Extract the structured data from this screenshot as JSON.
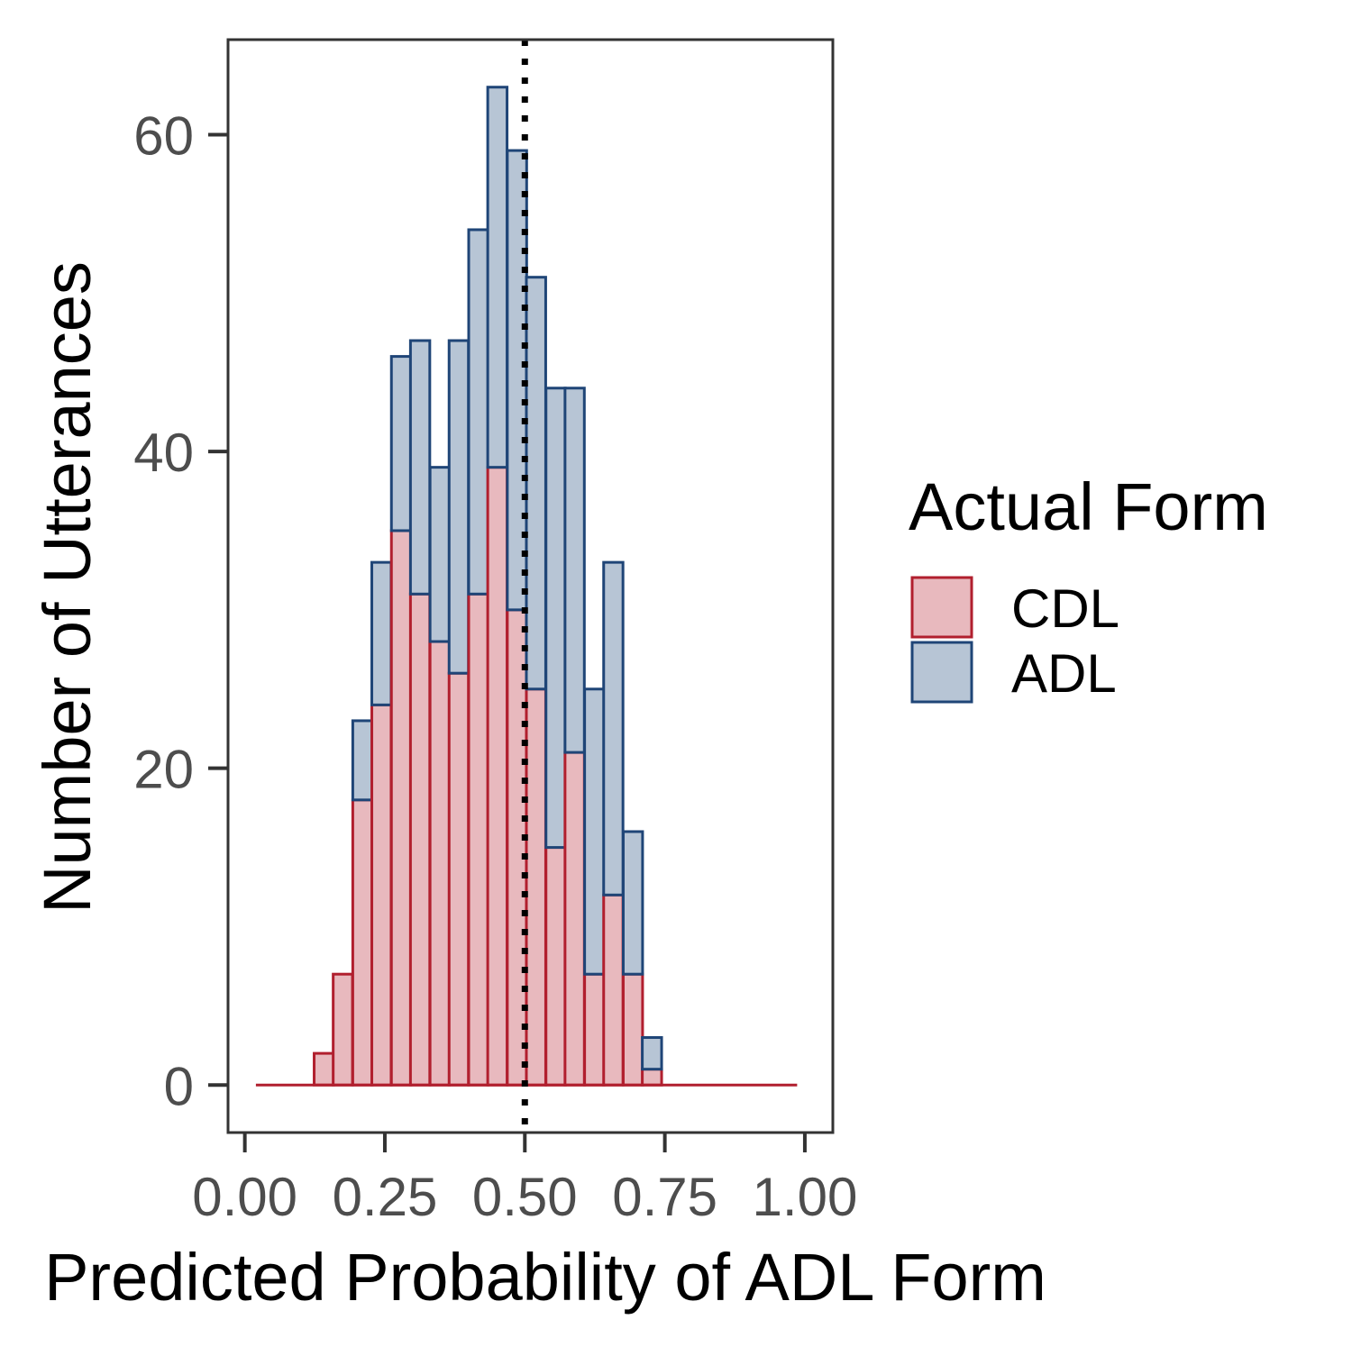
{
  "chart_data": {
    "type": "bar",
    "subtype": "stacked histogram",
    "xlabel": "Predicted Probability of ADL Form",
    "ylabel": "Number of Utterances",
    "xlim": [
      -0.03,
      1.05
    ],
    "ylim": [
      -3,
      66
    ],
    "x_ticks": [
      "0.00",
      "0.25",
      "0.50",
      "0.75",
      "1.00"
    ],
    "x_tick_values": [
      0,
      0.25,
      0.5,
      0.75,
      1.0
    ],
    "y_ticks": [
      "0",
      "20",
      "40",
      "60"
    ],
    "y_tick_values": [
      0,
      20,
      40,
      60
    ],
    "grid": false,
    "bin_width": 0.0345,
    "bin_centers": [
      0.037,
      0.072,
      0.106,
      0.141,
      0.175,
      0.21,
      0.244,
      0.279,
      0.313,
      0.348,
      0.382,
      0.417,
      0.451,
      0.486,
      0.52,
      0.555,
      0.589,
      0.624,
      0.658,
      0.693,
      0.727,
      0.762,
      0.796,
      0.831,
      0.865,
      0.9,
      0.934,
      0.969
    ],
    "series": [
      {
        "name": "CDL",
        "fill": "#e8b9be",
        "stroke": "#b11f2e",
        "values": [
          0,
          0,
          0,
          2,
          7,
          18,
          24,
          35,
          31,
          28,
          26,
          31,
          39,
          30,
          25,
          15,
          21,
          7,
          12,
          7,
          1,
          0,
          0,
          0,
          0,
          0,
          0,
          0
        ]
      },
      {
        "name": "ADL",
        "fill": "#b7c5d5",
        "stroke": "#1f4577",
        "values": [
          0,
          0,
          0,
          0,
          0,
          5,
          9,
          11,
          16,
          11,
          21,
          23,
          24,
          29,
          26,
          29,
          23,
          18,
          21,
          9,
          2,
          0,
          0,
          0,
          0,
          0,
          0,
          0
        ]
      }
    ],
    "threshold_line": {
      "x": 0.5,
      "style": "dotted",
      "color": "#000000"
    },
    "legend": {
      "title": "Actual Form",
      "position": "right",
      "entries": [
        "CDL",
        "ADL"
      ]
    }
  }
}
